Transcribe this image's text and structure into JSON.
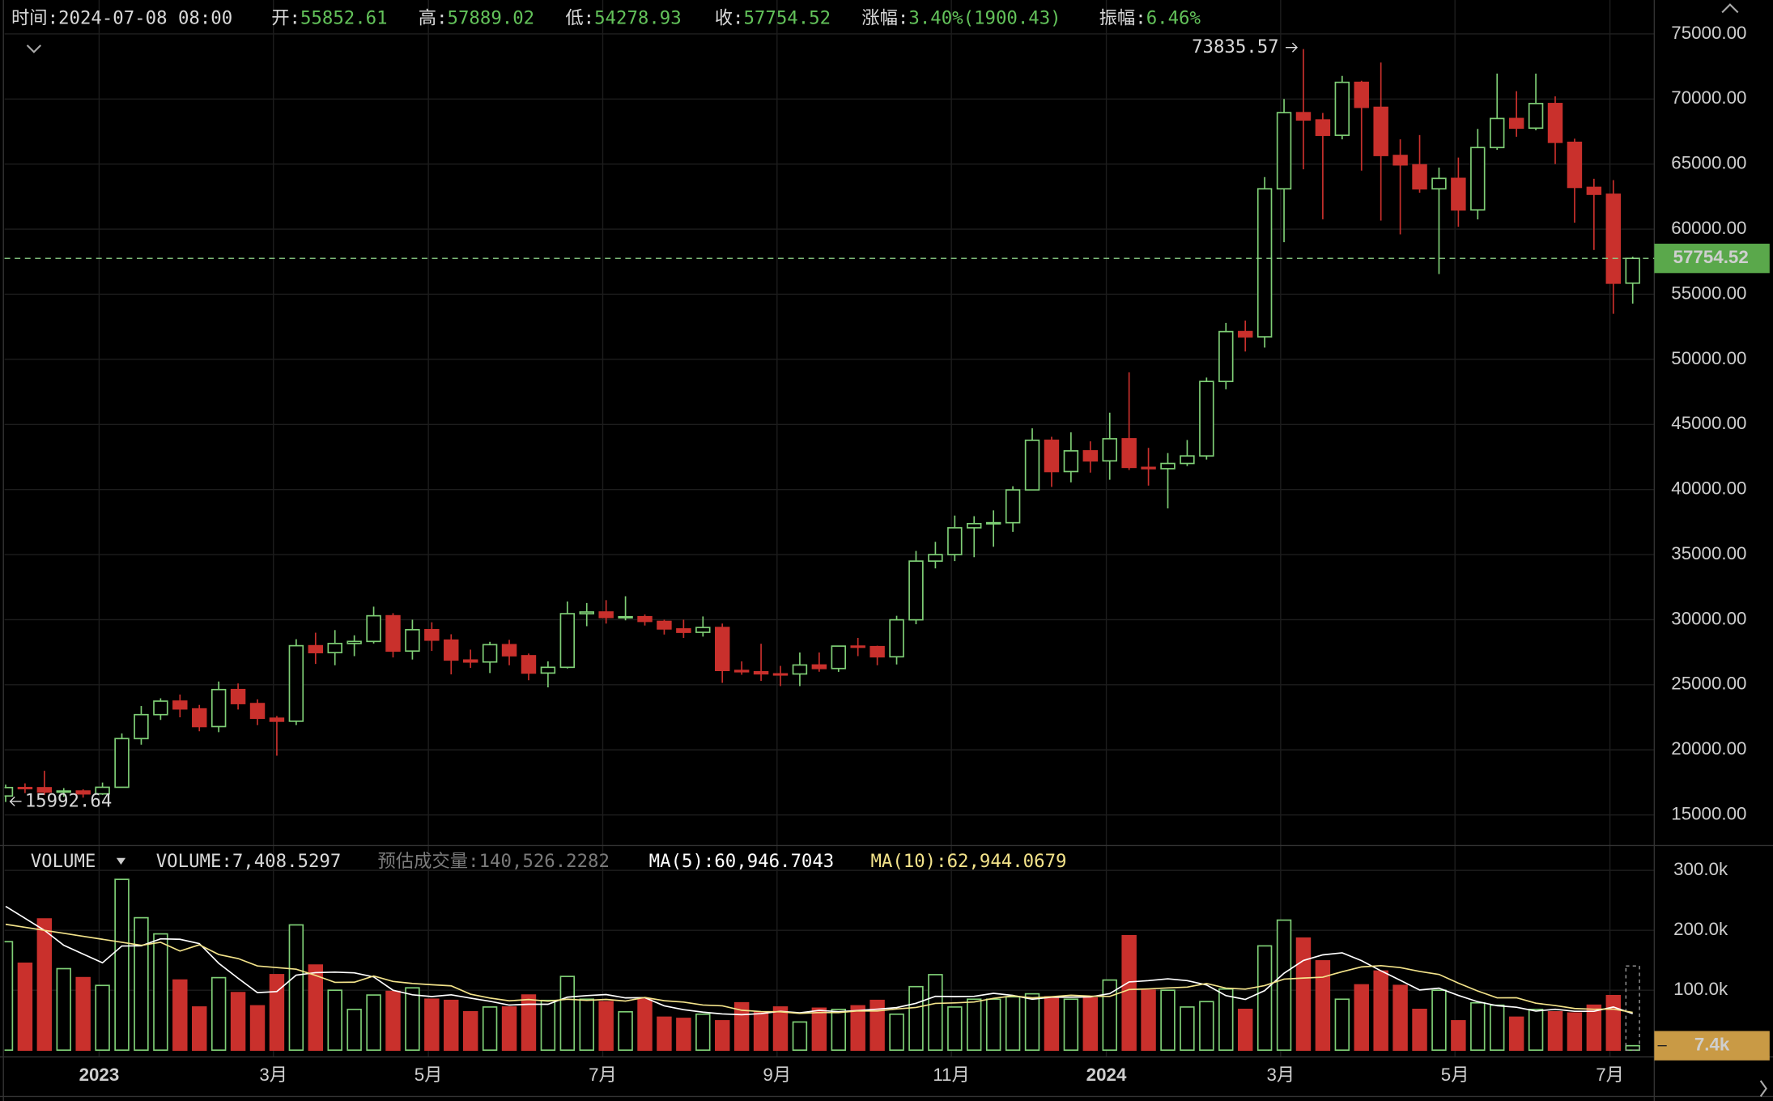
{
  "header": {
    "time_label": "时间:",
    "time": "2024-07-08 08:00",
    "open_label": "开:",
    "high_label": "高:",
    "low_label": "低:",
    "close_label": "收:",
    "change_label": "涨幅:",
    "change": "3.40%(1900.43)",
    "amplitude_label": "振幅:",
    "amplitude": "6.46%"
  },
  "chart_data": {
    "type": "candlestick",
    "categories": [
      null,
      null,
      null,
      null,
      null,
      "2023",
      null,
      null,
      null,
      null,
      null,
      null,
      null,
      null,
      "3月",
      null,
      null,
      null,
      null,
      null,
      null,
      null,
      "5月",
      null,
      null,
      null,
      null,
      null,
      null,
      null,
      null,
      "7月",
      null,
      null,
      null,
      null,
      null,
      null,
      null,
      null,
      "9月",
      null,
      null,
      null,
      null,
      null,
      null,
      null,
      null,
      "11月",
      null,
      null,
      null,
      null,
      null,
      null,
      null,
      "2024",
      null,
      null,
      null,
      null,
      null,
      null,
      null,
      null,
      "3月",
      null,
      null,
      null,
      null,
      null,
      null,
      null,
      null,
      "5月",
      null,
      null,
      null,
      null,
      null,
      null,
      null,
      "7月",
      null
    ],
    "candles": [
      [
        16456,
        17325,
        15992.64,
        17105
      ],
      [
        17105,
        17425,
        16678,
        17092
      ],
      [
        17092,
        18387,
        16526,
        16757
      ],
      [
        16757,
        17061,
        16398,
        16838
      ],
      [
        16838,
        16972,
        16333,
        16618
      ],
      [
        16618,
        17490,
        16543,
        17127
      ],
      [
        17127,
        21258,
        17104,
        20866
      ],
      [
        20866,
        23371,
        20400,
        22707
      ],
      [
        22707,
        23960,
        22300,
        23744
      ],
      [
        23744,
        24250,
        22500,
        23147
      ],
      [
        23147,
        23452,
        21430,
        21790
      ],
      [
        21790,
        25250,
        21360,
        24632
      ],
      [
        24632,
        25100,
        23100,
        23555
      ],
      [
        23555,
        23880,
        21900,
        22430
      ],
      [
        22430,
        22600,
        19550,
        22200
      ],
      [
        22200,
        28500,
        21900,
        28000
      ],
      [
        28000,
        29000,
        26600,
        27470
      ],
      [
        27470,
        29200,
        26500,
        28170
      ],
      [
        28170,
        28800,
        27200,
        28330
      ],
      [
        28330,
        31000,
        28170,
        30300
      ],
      [
        30300,
        30500,
        27100,
        27590
      ],
      [
        27590,
        30000,
        26940,
        29230
      ],
      [
        29230,
        29800,
        27600,
        28430
      ],
      [
        28430,
        28880,
        25800,
        26900
      ],
      [
        26900,
        27700,
        26300,
        26750
      ],
      [
        26750,
        28300,
        25900,
        28080
      ],
      [
        28080,
        28450,
        26500,
        27230
      ],
      [
        27230,
        27400,
        25350,
        25900
      ],
      [
        25900,
        26800,
        24800,
        26340
      ],
      [
        26340,
        31400,
        26250,
        30460
      ],
      [
        30460,
        31280,
        29500,
        30590
      ],
      [
        30590,
        31500,
        29700,
        30170
      ],
      [
        30170,
        31800,
        29950,
        30230
      ],
      [
        30230,
        30400,
        29550,
        29870
      ],
      [
        29870,
        30000,
        28860,
        29290
      ],
      [
        29290,
        30000,
        28600,
        29030
      ],
      [
        29030,
        30250,
        28700,
        29400
      ],
      [
        29400,
        29700,
        25150,
        26100
      ],
      [
        26100,
        26800,
        25770,
        26000
      ],
      [
        26000,
        28150,
        25300,
        25840
      ],
      [
        25840,
        26450,
        24900,
        25830
      ],
      [
        25830,
        27480,
        24900,
        26520
      ],
      [
        26520,
        27480,
        26000,
        26250
      ],
      [
        26250,
        28000,
        25990,
        27970
      ],
      [
        27970,
        28600,
        27200,
        27930
      ],
      [
        27930,
        28000,
        26500,
        27150
      ],
      [
        27150,
        30300,
        26560,
        29990
      ],
      [
        29990,
        35280,
        29650,
        34500
      ],
      [
        34500,
        35980,
        33940,
        35000
      ],
      [
        35000,
        38000,
        34500,
        37060
      ],
      [
        37060,
        37950,
        34800,
        37380
      ],
      [
        37380,
        38400,
        35600,
        37450
      ],
      [
        37450,
        40250,
        36750,
        39970
      ],
      [
        39970,
        44700,
        39970,
        43780
      ],
      [
        43780,
        44050,
        40200,
        41380
      ],
      [
        41380,
        44390,
        40550,
        42970
      ],
      [
        42970,
        43700,
        41300,
        42200
      ],
      [
        42200,
        45900,
        40750,
        43900
      ],
      [
        43900,
        49000,
        41500,
        41700
      ],
      [
        41700,
        43200,
        40300,
        41600
      ],
      [
        41600,
        42800,
        38550,
        42000
      ],
      [
        42000,
        43800,
        41800,
        42580
      ],
      [
        42580,
        48600,
        42300,
        48300
      ],
      [
        48300,
        52800,
        47700,
        52130
      ],
      [
        52130,
        52980,
        50600,
        51730
      ],
      [
        51730,
        64000,
        50900,
        63100
      ],
      [
        63100,
        70000,
        59000,
        68950
      ],
      [
        68950,
        73835.57,
        64600,
        68390
      ],
      [
        68390,
        68930,
        60760,
        67210
      ],
      [
        67210,
        71770,
        66900,
        71280
      ],
      [
        71280,
        71400,
        64500,
        69360
      ],
      [
        69360,
        72800,
        60660,
        65660
      ],
      [
        65660,
        66900,
        59600,
        64940
      ],
      [
        64940,
        67230,
        62800,
        63100
      ],
      [
        63100,
        64730,
        56550,
        63900
      ],
      [
        63900,
        65500,
        60190,
        61480
      ],
      [
        61480,
        67700,
        60750,
        66270
      ],
      [
        66270,
        71950,
        66100,
        68500
      ],
      [
        68500,
        70600,
        67100,
        67760
      ],
      [
        67760,
        71950,
        67600,
        69650
      ],
      [
        69650,
        70200,
        65000,
        66670
      ],
      [
        66670,
        66950,
        60500,
        63210
      ],
      [
        63210,
        63870,
        58400,
        62680
      ],
      [
        62680,
        63770,
        53500,
        55850
      ],
      [
        55852.61,
        57889.02,
        54278.93,
        57754.52
      ]
    ],
    "ylim": [
      12650,
      77170
    ],
    "yticks": [
      {
        "value": 15000,
        "label": "15000.00"
      },
      {
        "value": 20000,
        "label": "20000.00"
      },
      {
        "value": 25000,
        "label": "25000.00"
      },
      {
        "value": 30000,
        "label": "30000.00"
      },
      {
        "value": 35000,
        "label": "35000.00"
      },
      {
        "value": 40000,
        "label": "40000.00"
      },
      {
        "value": 45000,
        "label": "45000.00"
      },
      {
        "value": 50000,
        "label": "50000.00"
      },
      {
        "value": 55000,
        "label": "55000.00"
      },
      {
        "value": 60000,
        "label": "60000.00"
      },
      {
        "value": 65000,
        "label": "65000.00"
      },
      {
        "value": 70000,
        "label": "70000.00"
      },
      {
        "value": 75000,
        "label": "75000.00"
      }
    ],
    "grid": true,
    "up_color": "#7fcf76",
    "down_color": "#c9302c",
    "volume": {
      "title": "VOLUME",
      "readout_label": "VOLUME:",
      "readout": "7,408.5297",
      "estimate_label": "预估成交量:",
      "estimate": {
        "value": 140.5262282,
        "label": "140,526.2282"
      },
      "values": [
        181,
        145,
        219,
        136,
        121,
        108,
        285,
        221,
        194,
        117,
        72,
        121,
        96,
        74,
        126,
        209,
        142,
        100,
        68,
        92,
        98,
        104,
        85,
        83,
        64,
        72,
        72,
        92,
        83,
        123,
        85,
        81,
        64,
        85,
        55,
        53,
        60,
        49,
        79,
        64,
        72,
        47,
        70,
        68,
        74,
        83,
        60,
        106,
        126,
        72,
        85,
        85,
        89,
        94,
        89,
        85,
        87,
        117,
        191,
        100,
        100,
        72,
        81,
        102,
        68,
        174,
        217,
        187,
        149,
        85,
        109,
        132,
        108,
        68,
        100,
        49,
        79,
        75,
        55,
        68,
        64,
        62,
        75,
        91,
        7.4085297
      ],
      "value_labels": [
        null,
        null,
        null,
        null,
        null,
        null,
        null,
        null,
        null,
        null,
        null,
        null,
        null,
        null,
        null,
        null,
        null,
        null,
        null,
        null,
        null,
        null,
        null,
        null,
        null,
        null,
        null,
        null,
        null,
        null,
        null,
        null,
        null,
        null,
        null,
        null,
        null,
        null,
        null,
        null,
        null,
        null,
        null,
        null,
        null,
        null,
        null,
        null,
        null,
        null,
        null,
        null,
        null,
        null,
        null,
        null,
        null,
        null,
        null,
        null,
        null,
        null,
        null,
        null,
        null,
        null,
        null,
        null,
        null,
        null,
        null,
        null,
        null,
        null,
        null,
        null,
        null,
        null,
        null,
        null,
        null,
        null,
        null,
        null,
        "7.4k"
      ],
      "ylim": [
        -11.3,
        337.7
      ],
      "yticks": [
        {
          "value": 100,
          "label": "100.0k"
        },
        {
          "value": 200,
          "label": "200.0k"
        },
        {
          "value": 300,
          "label": "300.0k"
        }
      ],
      "label_color": "#c99a45",
      "ma": [
        {
          "name": "MA(5):",
          "readout": "60,946.7043",
          "color": "#ffffff",
          "values": [
            240,
            220,
            200,
            175,
            160.4,
            145.8,
            173.8,
            174.2,
            185.8,
            185,
            177.8,
            145,
            120,
            96,
            97.8,
            125.2,
            129.4,
            130.2,
            129,
            122.2,
            100,
            92.4,
            89.4,
            92.4,
            86.8,
            81.6,
            75.2,
            76.6,
            76.6,
            88.4,
            91,
            92.8,
            87.2,
            87.6,
            74,
            67.6,
            63.4,
            60.4,
            59.2,
            61,
            64.8,
            62.2,
            66.4,
            64.2,
            66.2,
            68.4,
            71,
            78.2,
            89.8,
            89.4,
            89.8,
            94.8,
            91.4,
            85,
            88.4,
            88.4,
            88.8,
            94.4,
            113.8,
            116,
            119,
            116,
            108.8,
            91,
            84.6,
            99.4,
            128.4,
            149.6,
            159,
            162.4,
            149.4,
            132.4,
            116.6,
            100.4,
            103.4,
            91.4,
            80.8,
            74.2,
            71.6,
            65.2,
            68.2,
            64.8,
            64.8,
            72,
            60.9467043
          ]
        },
        {
          "name": "MA(10):",
          "readout": "62,944.0679",
          "color": "#f3e38a",
          "values": [
            210,
            205,
            200,
            195,
            190,
            185,
            180,
            175,
            180,
            165.4,
            175.8,
            159.6,
            152.9,
            140.5,
            137.8,
            135.1,
            124.7,
            113.1,
            113.4,
            123.7,
            114.7,
            111.3,
            109.2,
            107.3,
            93.4,
            87,
            82.3,
            84.5,
            81.7,
            85,
            83.1,
            84.7,
            81.9,
            88,
            82.5,
            80.2,
            75.3,
            74,
            66.6,
            64.3,
            64.1,
            61.3,
            62.8,
            62.6,
            65.5,
            65.3,
            68.7,
            71.2,
            78,
            78.9,
            80.4,
            86.5,
            90.6,
            87.2,
            89.1,
            91.6,
            90.1,
            89.7,
            101.1,
            102.2,
            103.9,
            105.2,
            111.3,
            103.5,
            101.8,
            107.7,
            118.6,
            120.3,
            121.8,
            130.9,
            138.9,
            141,
            137.8,
            131.4,
            126.4,
            111.9,
            98.7,
            87.3,
            87.5,
            78.3,
            74.5,
            69.5,
            68.2,
            68.6,
            62.9440679
          ]
        }
      ]
    }
  }
}
